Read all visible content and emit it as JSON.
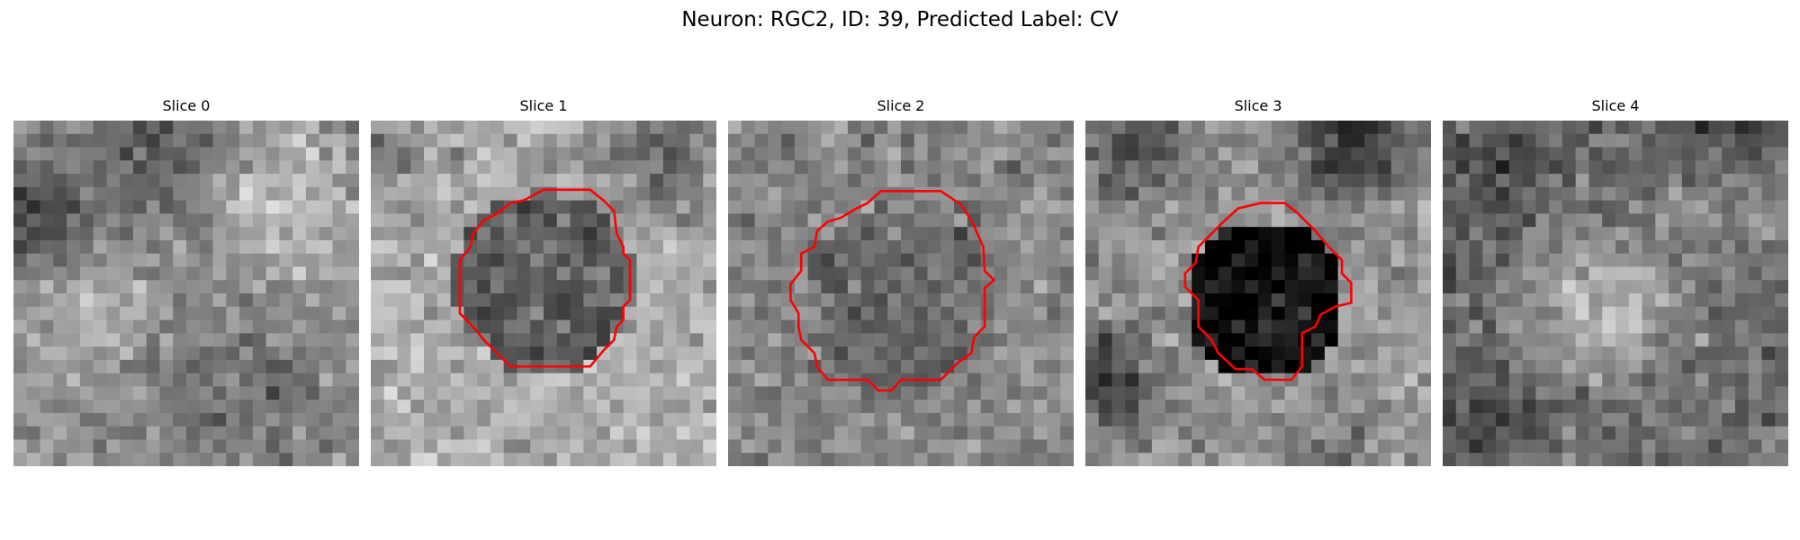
{
  "suptitle": "Neuron: RGC2, ID: 39, Predicted Label: CV",
  "panels": [
    {
      "title": "Slice 0",
      "has_contour": false
    },
    {
      "title": "Slice 1",
      "has_contour": true
    },
    {
      "title": "Slice 2",
      "has_contour": true
    },
    {
      "title": "Slice 3",
      "has_contour": true
    },
    {
      "title": "Slice 4",
      "has_contour": false
    }
  ],
  "colors": {
    "contour": "#ff0000",
    "background": "#ffffff"
  },
  "colormap": "gray",
  "grid_size": 26
}
